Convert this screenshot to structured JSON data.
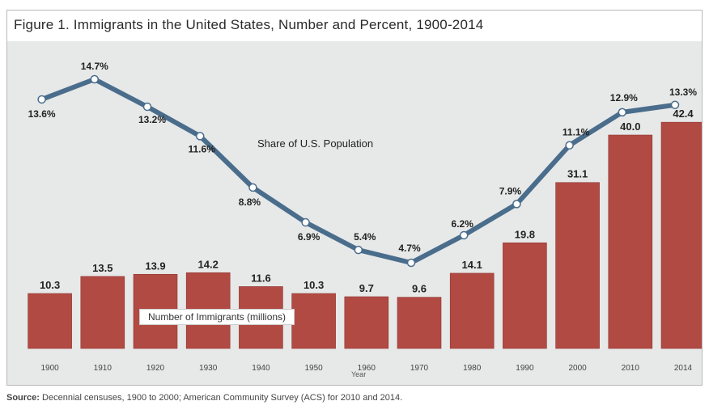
{
  "chart_data": {
    "type": "bar",
    "title": "Figure 1. Immigrants in the United States, Number and Percent, 1900-2014",
    "xlabel": "Year",
    "categories": [
      "1900",
      "1910",
      "1920",
      "1930",
      "1940",
      "1950",
      "1960",
      "1970",
      "1980",
      "1990",
      "2000",
      "2010",
      "2014"
    ],
    "series": [
      {
        "name": "Number of Immigrants (millions)",
        "type": "bar",
        "values": [
          10.3,
          13.5,
          13.9,
          14.2,
          11.6,
          10.3,
          9.7,
          9.6,
          14.1,
          19.8,
          31.1,
          40.0,
          42.4
        ],
        "labels": [
          "10.3",
          "13.5",
          "13.9",
          "14.2",
          "11.6",
          "10.3",
          "9.7",
          "9.6",
          "14.1",
          "19.8",
          "31.1",
          "40.0",
          "42.4"
        ],
        "color": "#b24a44"
      },
      {
        "name": "Share of U.S. Population",
        "type": "line",
        "values": [
          13.6,
          14.7,
          13.2,
          11.6,
          8.8,
          6.9,
          5.4,
          4.7,
          6.2,
          7.9,
          11.1,
          12.9,
          13.3
        ],
        "labels": [
          "13.6%",
          "14.7%",
          "13.2%",
          "11.6%",
          "8.8%",
          "6.9%",
          "5.4%",
          "4.7%",
          "6.2%",
          "7.9%",
          "11.1%",
          "12.9%",
          "13.3%"
        ],
        "color": "#4a6d8c"
      }
    ],
    "grid": false
  },
  "annotations": {
    "line": "Share of U.S. Population",
    "bar": "Number of Immigrants (millions)"
  },
  "footer": {
    "source_label": "Source:",
    "source_text": "Decennial censuses, 1900 to 2000; American Community Survey (ACS) for 2010 and 2014."
  }
}
